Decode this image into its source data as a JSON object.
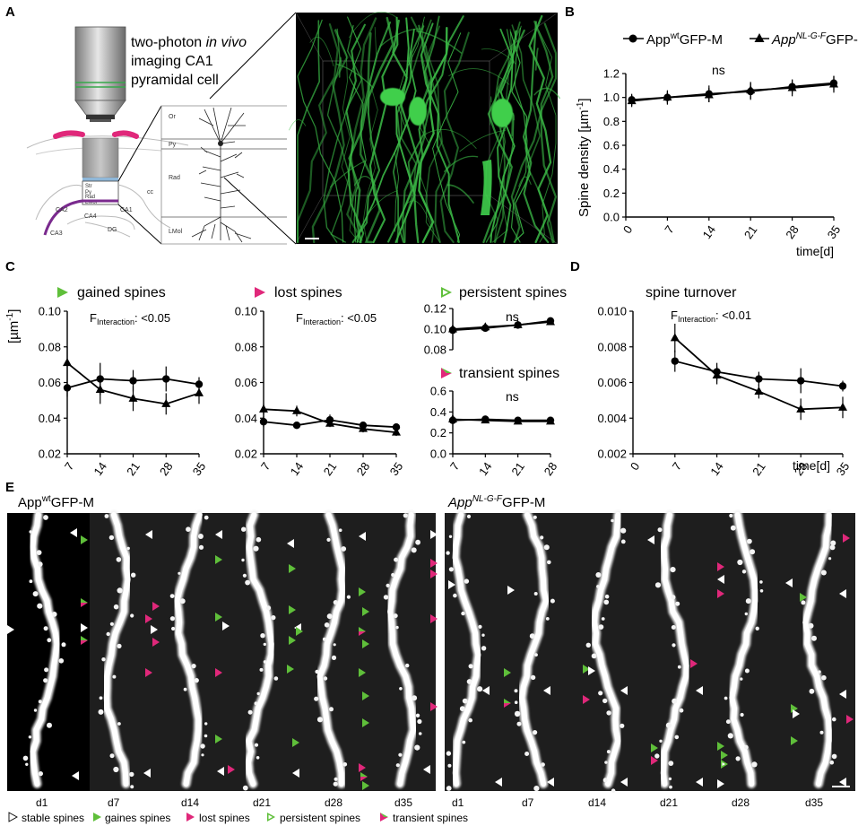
{
  "panel_labels": [
    "A",
    "B",
    "C",
    "D",
    "E"
  ],
  "panel_a": {
    "caption_l1_before": "two-photon ",
    "caption_l1_italic": "in vivo",
    "caption_l2": "imaging CA1",
    "caption_l3": "pyramidal cell",
    "layers": [
      "Or",
      "Py",
      "Rad",
      "LMol"
    ],
    "regions": [
      "CA1",
      "CA2",
      "CA3",
      "CA4",
      "DG",
      "cc"
    ]
  },
  "legend_b": {
    "wt_pre": "App",
    "wt_sup": "wt",
    "wt_post": "GFP-M",
    "ki_pre": "App",
    "ki_sup": "NL-G-F",
    "ki_post": "GFP-M"
  },
  "headers": {
    "gained": "gained spines",
    "lost": "lost spines",
    "persistent": "persistent spines",
    "transient": "transient spines",
    "turnover": "spine turnover"
  },
  "stats": {
    "ns_b": "ns",
    "ns_persistent": "ns",
    "ns_transient": "ns",
    "f_prefix": "F",
    "f_sub": "Interaction",
    "f_gained": ": <0.05",
    "f_lost": ": <0.05",
    "f_turnover": ": <0.01"
  },
  "ylabels": {
    "density_pre": "Spine density [µm",
    "density_sup": "-1",
    "density_post": "]",
    "c_pre": "[µm",
    "c_sup": "-1",
    "c_post": "]"
  },
  "xlabel_time": "time[d]",
  "panel_e": {
    "title_wt_pre": "App",
    "title_wt_sup": "wt",
    "title_wt_post": "GFP-M",
    "title_ki_pre": "App",
    "title_ki_sup": "NL-G-F",
    "title_ki_post": "GFP-M",
    "days_left": [
      "d1",
      "d7",
      "d14",
      "d21",
      "d28",
      "d35"
    ],
    "days_right": [
      "d1",
      "d7",
      "d14",
      "d21",
      "d28",
      "d35"
    ]
  },
  "legend_e": {
    "stable": "stable spines",
    "gaines": "gaines spines",
    "lost": "lost spines",
    "persistent": "persistent spines",
    "transient": "transient spines"
  },
  "colors": {
    "green": "#5fbf3a",
    "magenta": "#e0287a",
    "neuron": "#3ec24a"
  },
  "chart_data": [
    {
      "id": "B",
      "type": "line",
      "x": [
        1,
        7,
        14,
        21,
        28,
        35
      ],
      "xticks": [
        0,
        7,
        14,
        21,
        28,
        35
      ],
      "xlim": [
        0,
        35
      ],
      "ylim": [
        0.0,
        1.2
      ],
      "yticks": [
        0.0,
        0.2,
        0.4,
        0.6,
        0.8,
        1.0,
        1.2
      ],
      "xlabel": "time[d]",
      "ylabel": "Spine density [µm-1]",
      "series": [
        {
          "marker": "circle",
          "values": [
            0.98,
            1.0,
            1.03,
            1.05,
            1.09,
            1.12
          ],
          "err": [
            0.05,
            0.06,
            0.07,
            0.07,
            0.06,
            0.06
          ]
        },
        {
          "marker": "triangle",
          "values": [
            0.97,
            1.0,
            1.02,
            1.06,
            1.08,
            1.11
          ],
          "err": [
            0.05,
            0.05,
            0.06,
            0.07,
            0.07,
            0.07
          ]
        }
      ]
    },
    {
      "id": "C-gained",
      "type": "line",
      "x": [
        7,
        14,
        21,
        28,
        35
      ],
      "xticks": [
        7,
        14,
        21,
        28,
        35
      ],
      "xlim": [
        7,
        35
      ],
      "ylim": [
        0.02,
        0.1
      ],
      "yticks": [
        0.02,
        0.04,
        0.06,
        0.08,
        0.1
      ],
      "ylabel": "[µm-1]",
      "series": [
        {
          "marker": "circle",
          "values": [
            0.057,
            0.062,
            0.061,
            0.062,
            0.059
          ],
          "err": [
            0.005,
            0.009,
            0.006,
            0.007,
            0.004
          ]
        },
        {
          "marker": "triangle",
          "values": [
            0.071,
            0.056,
            0.051,
            0.048,
            0.054
          ],
          "err": [
            0.009,
            0.008,
            0.007,
            0.006,
            0.006
          ]
        }
      ]
    },
    {
      "id": "C-lost",
      "type": "line",
      "x": [
        7,
        14,
        21,
        28,
        35
      ],
      "xticks": [
        7,
        14,
        21,
        28,
        35
      ],
      "xlim": [
        7,
        35
      ],
      "ylim": [
        0.02,
        0.1
      ],
      "yticks": [
        0.02,
        0.04,
        0.06,
        0.08,
        0.1
      ],
      "series": [
        {
          "marker": "circle",
          "values": [
            0.038,
            0.036,
            0.039,
            0.036,
            0.035
          ],
          "err": [
            0.003,
            0.002,
            0.003,
            0.002,
            0.002
          ]
        },
        {
          "marker": "triangle",
          "values": [
            0.045,
            0.044,
            0.037,
            0.034,
            0.032
          ],
          "err": [
            0.003,
            0.003,
            0.002,
            0.002,
            0.002
          ]
        }
      ]
    },
    {
      "id": "C-persistent",
      "type": "line",
      "x": [
        7,
        14,
        21,
        28
      ],
      "xlim": [
        7,
        28
      ],
      "ylim": [
        0.08,
        0.12
      ],
      "yticks": [
        0.08,
        0.1,
        0.12
      ],
      "series": [
        {
          "marker": "circle",
          "values": [
            0.099,
            0.101,
            0.104,
            0.108
          ],
          "err": [
            0.003,
            0.003,
            0.003,
            0.003
          ]
        },
        {
          "marker": "triangle",
          "values": [
            0.1,
            0.102,
            0.104,
            0.107
          ],
          "err": [
            0.003,
            0.003,
            0.003,
            0.003
          ]
        }
      ]
    },
    {
      "id": "C-transient",
      "type": "line",
      "x": [
        7,
        14,
        21,
        28
      ],
      "xticks": [
        7,
        14,
        21,
        28
      ],
      "xlim": [
        7,
        28
      ],
      "ylim": [
        0.0,
        0.6
      ],
      "yticks": [
        0.0,
        0.2,
        0.4,
        0.6
      ],
      "series": [
        {
          "marker": "circle",
          "values": [
            0.32,
            0.33,
            0.32,
            0.32
          ],
          "err": [
            0.02,
            0.02,
            0.02,
            0.02
          ]
        },
        {
          "marker": "triangle",
          "values": [
            0.33,
            0.32,
            0.31,
            0.31
          ],
          "err": [
            0.02,
            0.02,
            0.02,
            0.02
          ]
        }
      ]
    },
    {
      "id": "D",
      "type": "line",
      "x": [
        7,
        14,
        21,
        28,
        35
      ],
      "xticks": [
        0,
        7,
        14,
        21,
        28,
        35
      ],
      "xlim": [
        0,
        35
      ],
      "ylim": [
        0.002,
        0.01
      ],
      "yticks": [
        0.002,
        0.004,
        0.006,
        0.008,
        0.01
      ],
      "xlabel": "time[d]",
      "series": [
        {
          "marker": "circle",
          "values": [
            0.0072,
            0.0066,
            0.0062,
            0.0061,
            0.0058
          ],
          "err": [
            0.0006,
            0.0005,
            0.0004,
            0.0007,
            0.0003
          ]
        },
        {
          "marker": "triangle",
          "values": [
            0.0085,
            0.0064,
            0.0055,
            0.0045,
            0.0046
          ],
          "err": [
            0.0008,
            0.0005,
            0.0004,
            0.0006,
            0.0006
          ]
        }
      ]
    }
  ]
}
